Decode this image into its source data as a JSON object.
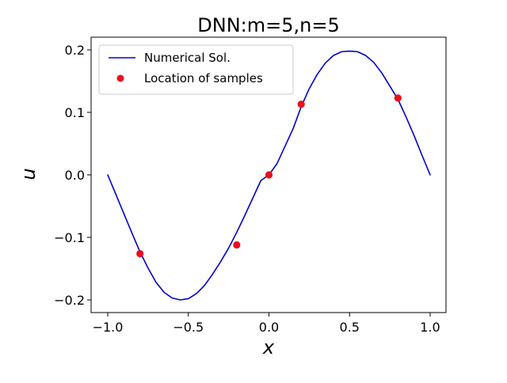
{
  "chart_data": {
    "type": "line",
    "title": "DNN:m=5,n=5",
    "xlabel": "x",
    "ylabel": "u",
    "xlim": [
      -1.0,
      1.0
    ],
    "ylim": [
      -0.2,
      0.2
    ],
    "xticks": [
      {
        "value": -1.0,
        "label": "−1.0"
      },
      {
        "value": -0.5,
        "label": "−0.5"
      },
      {
        "value": 0.0,
        "label": "0.0"
      },
      {
        "value": 0.5,
        "label": "0.5"
      },
      {
        "value": 1.0,
        "label": "1.0"
      }
    ],
    "yticks": [
      {
        "value": -0.2,
        "label": "−0.2"
      },
      {
        "value": -0.1,
        "label": "−0.1"
      },
      {
        "value": 0.0,
        "label": "0.0"
      },
      {
        "value": 0.1,
        "label": "0.1"
      },
      {
        "value": 0.2,
        "label": "0.2"
      }
    ],
    "grid": false,
    "legend_position": "top-left",
    "series": [
      {
        "name": "Numerical Sol.",
        "kind": "line",
        "color": "#0000cc",
        "x": [
          -1.0,
          -0.95,
          -0.9,
          -0.85,
          -0.8,
          -0.75,
          -0.7,
          -0.65,
          -0.6,
          -0.55,
          -0.5,
          -0.45,
          -0.4,
          -0.35,
          -0.3,
          -0.25,
          -0.2,
          -0.15,
          -0.1,
          -0.05,
          0.0,
          0.05,
          0.1,
          0.15,
          0.2,
          0.25,
          0.3,
          0.35,
          0.4,
          0.45,
          0.5,
          0.55,
          0.6,
          0.65,
          0.7,
          0.75,
          0.8,
          0.85,
          0.9,
          0.95,
          1.0
        ],
        "y": [
          0.0,
          -0.031,
          -0.062,
          -0.093,
          -0.123,
          -0.149,
          -0.172,
          -0.188,
          -0.197,
          -0.2,
          -0.198,
          -0.19,
          -0.177,
          -0.159,
          -0.139,
          -0.117,
          -0.092,
          -0.065,
          -0.037,
          -0.009,
          0.0,
          0.018,
          0.046,
          0.074,
          0.109,
          0.138,
          0.161,
          0.179,
          0.191,
          0.197,
          0.198,
          0.197,
          0.191,
          0.18,
          0.163,
          0.142,
          0.121,
          0.093,
          0.063,
          0.031,
          0.0
        ]
      },
      {
        "name": "Location of samples",
        "kind": "scatter",
        "color": "#e8101e",
        "x": [
          -0.8,
          -0.2,
          0.0,
          0.2,
          0.8
        ],
        "y": [
          -0.126,
          -0.112,
          0.0,
          0.113,
          0.123
        ]
      }
    ]
  }
}
